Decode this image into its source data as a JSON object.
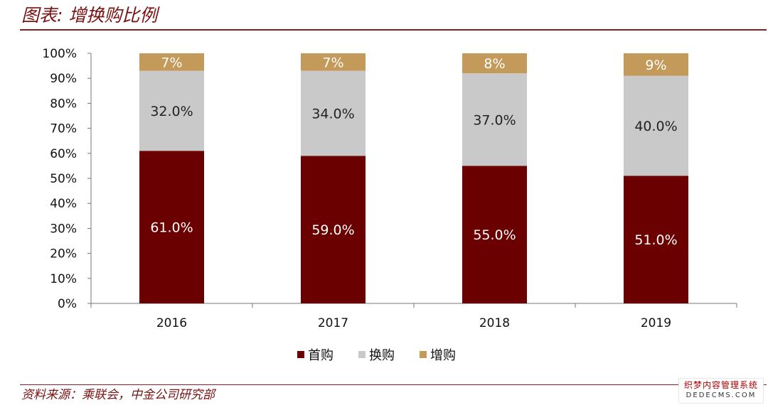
{
  "header": {
    "title": "图表: 增换购比例"
  },
  "footer": {
    "source": "资料来源：乘联会，中金公司研究部",
    "watermark_line1": "织梦内容管理系统",
    "watermark_line2": "DEDECMS.COM"
  },
  "colors": {
    "accent": "#7a1212",
    "first": "#6b0000",
    "replace": "#c9c9c9",
    "add": "#c49a5a"
  },
  "chart_data": {
    "type": "bar",
    "stacked": true,
    "categories": [
      "2016",
      "2017",
      "2018",
      "2019"
    ],
    "series": [
      {
        "name": "首购",
        "values": [
          61,
          59,
          55,
          51
        ],
        "labels": [
          "61.0%",
          "59.0%",
          "55.0%",
          "51.0%"
        ],
        "color": "#6b0000",
        "label_color": "#ffffff"
      },
      {
        "name": "换购",
        "values": [
          32,
          34,
          37,
          40
        ],
        "labels": [
          "32.0%",
          "34.0%",
          "37.0%",
          "40.0%"
        ],
        "color": "#c9c9c9",
        "label_color": "#222222"
      },
      {
        "name": "增购",
        "values": [
          7,
          7,
          8,
          9
        ],
        "labels": [
          "7%",
          "7%",
          "8%",
          "9%"
        ],
        "color": "#c49a5a",
        "label_color": "#ffffff"
      }
    ],
    "yticks": [
      "0%",
      "10%",
      "20%",
      "30%",
      "40%",
      "50%",
      "60%",
      "70%",
      "80%",
      "90%",
      "100%"
    ],
    "ylim": [
      0,
      100
    ],
    "legend_position": "bottom-center",
    "grid": false
  }
}
